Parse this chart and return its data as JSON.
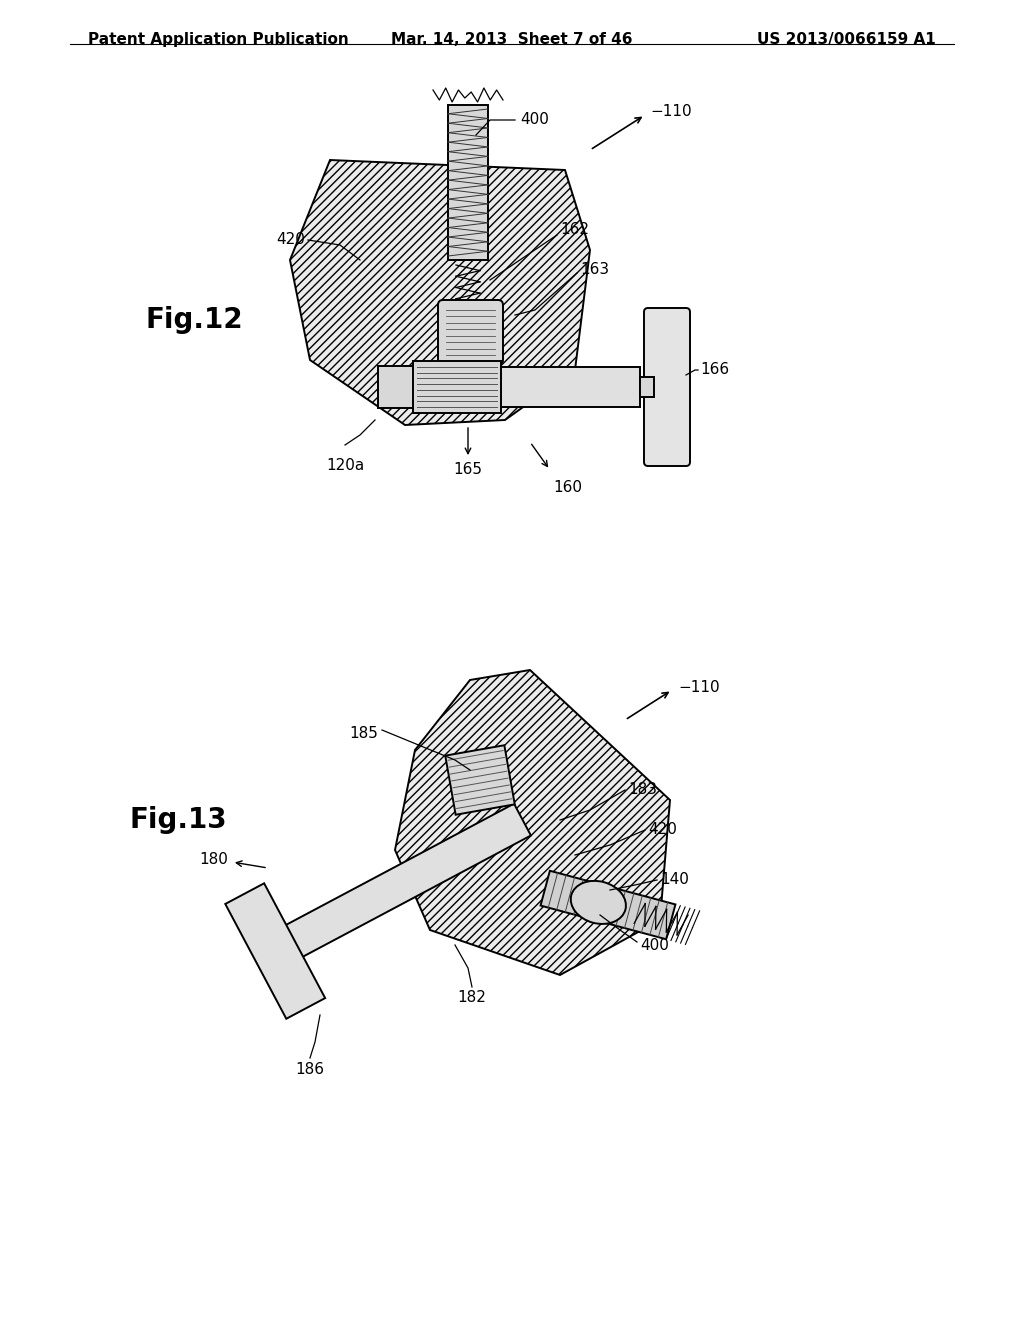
{
  "bg_color": "#ffffff",
  "header_left": "Patent Application Publication",
  "header_center": "Mar. 14, 2013  Sheet 7 of 46",
  "header_right": "US 2013/0066159 A1",
  "fig12_label": "Fig.12",
  "fig13_label": "Fig.13",
  "line_color": "#000000",
  "font_size_header": 11,
  "font_size_fig_label": 20,
  "font_size_annotation": 11,
  "hatch_density": "////"
}
